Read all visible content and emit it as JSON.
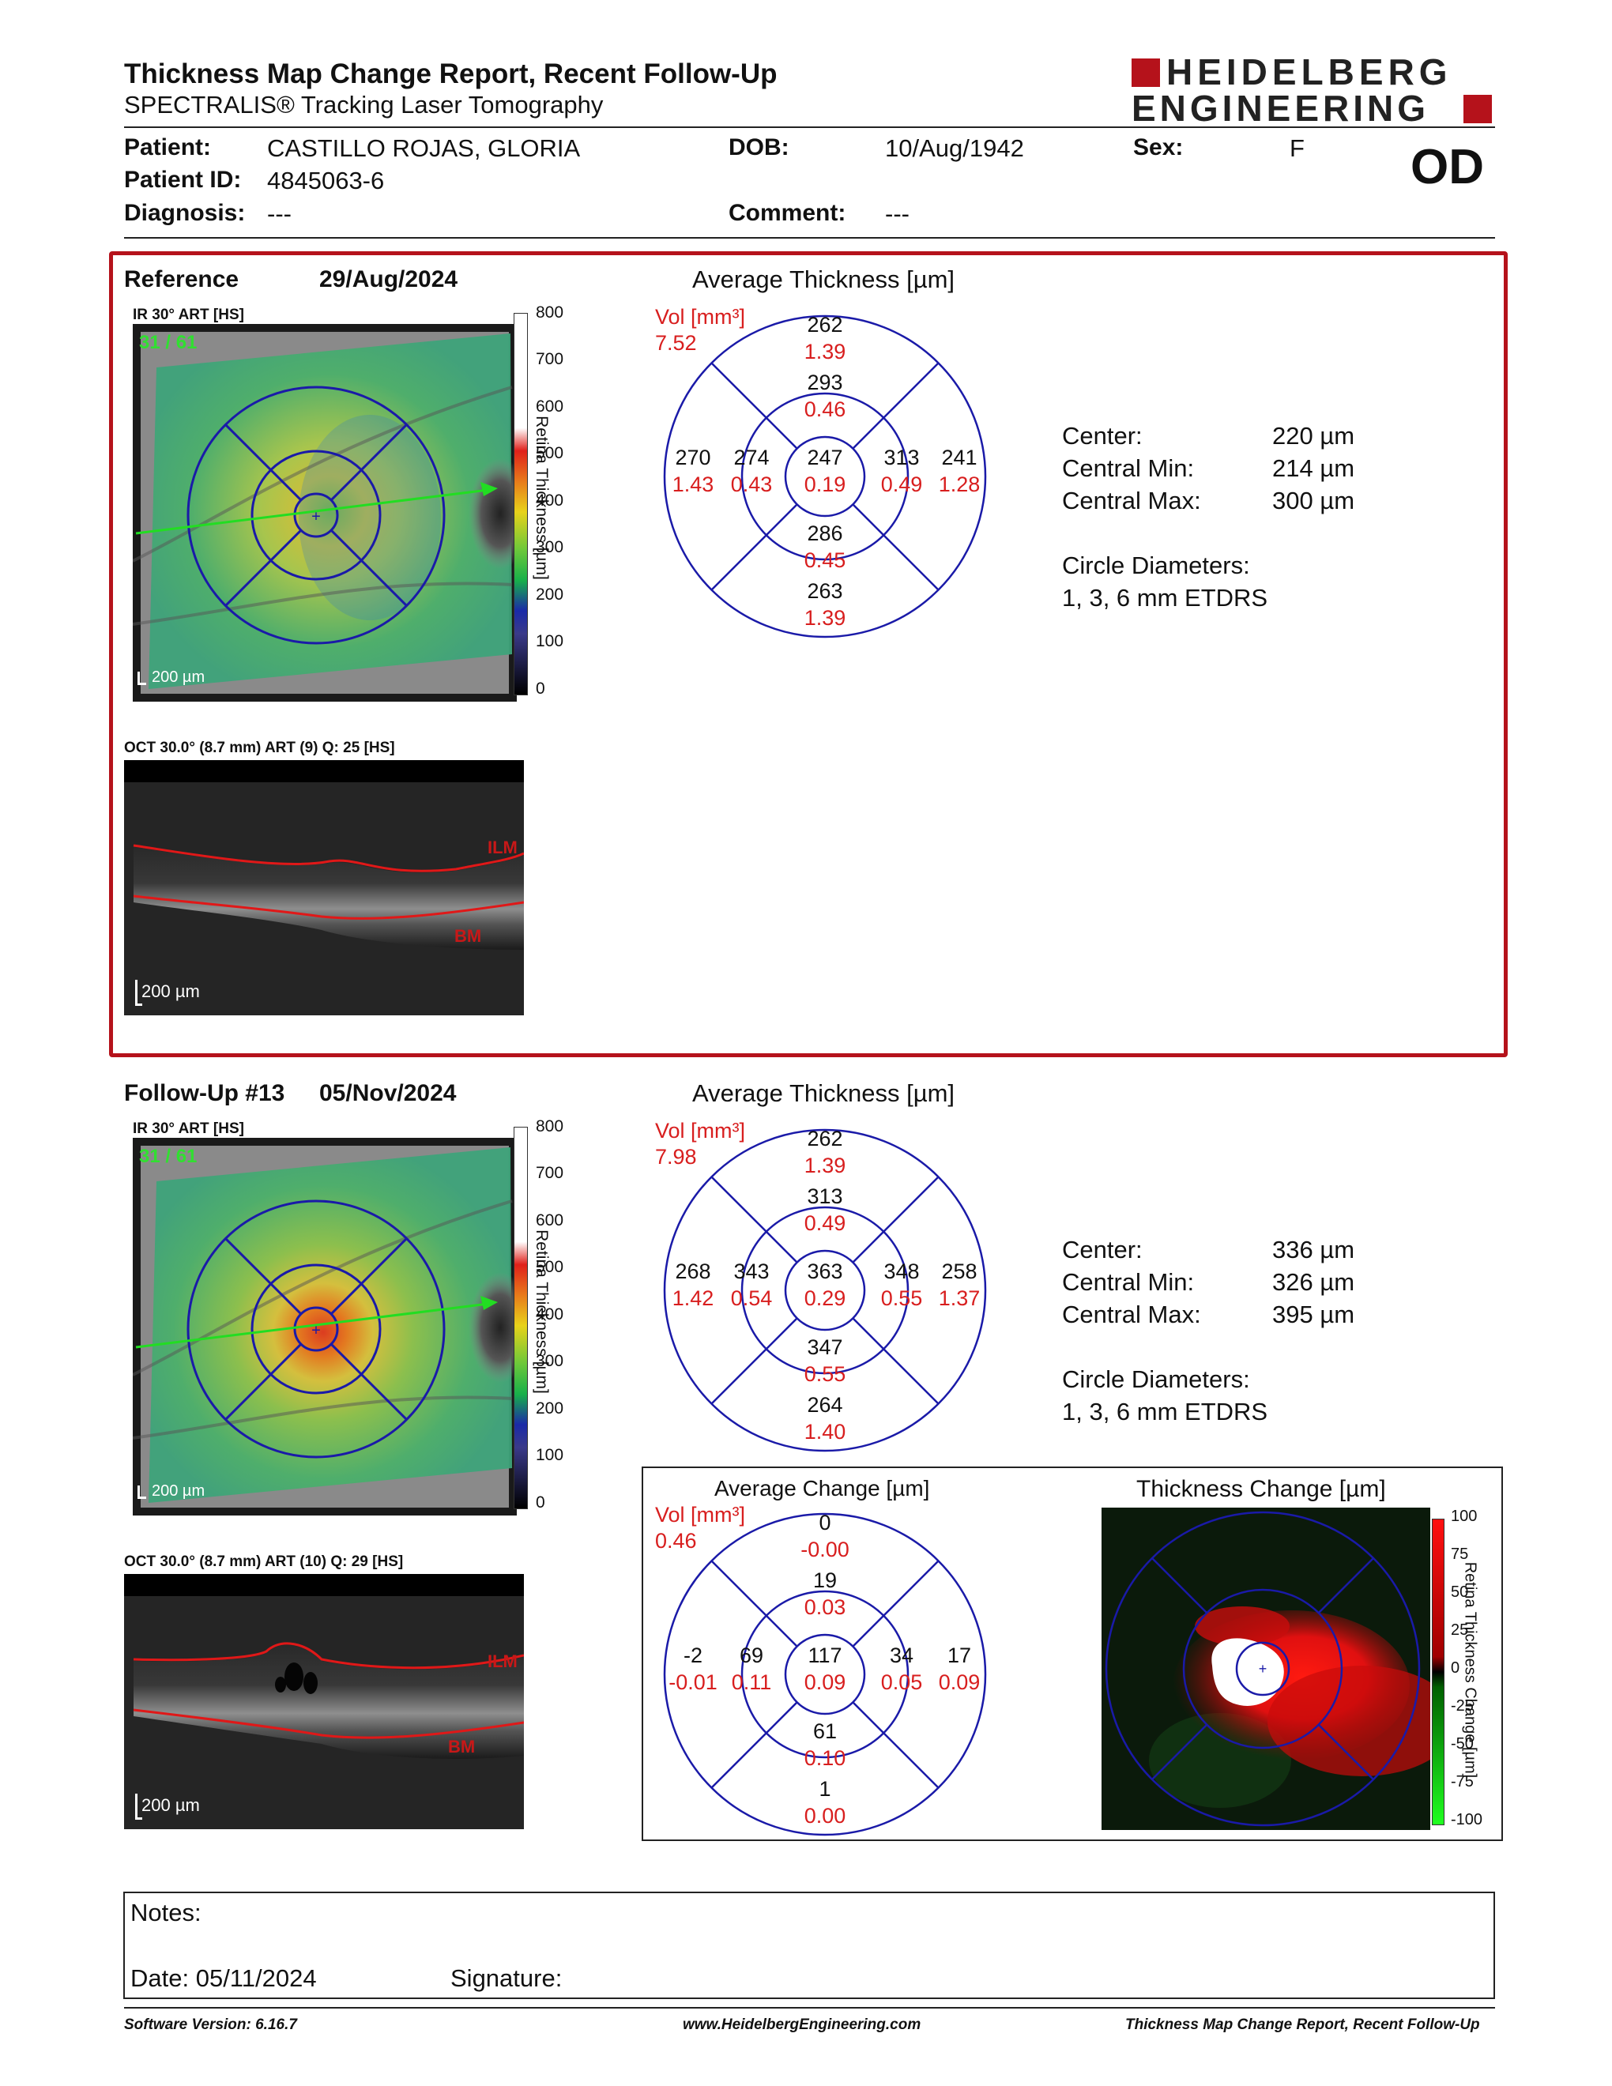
{
  "header": {
    "title": "Thickness Map Change Report, Recent Follow-Up",
    "subtitle": "SPECTRALIS® Tracking Laser Tomography",
    "logo_line1": "HEIDELBERG",
    "logo_line2": "ENGINEERING",
    "eye": "OD"
  },
  "patient": {
    "patient_label": "Patient:",
    "patient_value": "CASTILLO ROJAS, GLORIA",
    "id_label": "Patient ID:",
    "id_value": "4845063-6",
    "diag_label": "Diagnosis:",
    "diag_value": "---",
    "dob_label": "DOB:",
    "dob_value": "10/Aug/1942",
    "comment_label": "Comment:",
    "comment_value": "---",
    "sex_label": "Sex:",
    "sex_value": "F"
  },
  "reference": {
    "label": "Reference",
    "date": "29/Aug/2024",
    "ir_label": "IR 30° ART [HS]",
    "frame": "31 / 61",
    "scale": "200 µm",
    "oct_label": "OCT 30.0° (8.7 mm) ART (9) Q: 25 [HS]",
    "oct_scale": "200 µm",
    "ilm": "ILM",
    "bm": "BM",
    "grid_title": "Average Thickness [µm]",
    "vol_label": "Vol [mm³]",
    "vol_value": "7.52",
    "sectors": {
      "outer_sup": [
        "262",
        "1.39"
      ],
      "inner_sup": [
        "293",
        "0.46"
      ],
      "outer_temp": [
        "270",
        "1.43"
      ],
      "inner_temp": [
        "274",
        "0.43"
      ],
      "center": [
        "247",
        "0.19"
      ],
      "inner_nasal": [
        "313",
        "0.49"
      ],
      "outer_nasal": [
        "241",
        "1.28"
      ],
      "inner_inf": [
        "286",
        "0.45"
      ],
      "outer_inf": [
        "263",
        "1.39"
      ]
    },
    "stats": {
      "center_label": "Center:",
      "center_value": "220 µm",
      "min_label": "Central Min:",
      "min_value": "214 µm",
      "max_label": "Central Max:",
      "max_value": "300 µm",
      "circle_label": "Circle Diameters:",
      "circle_value": "1, 3, 6 mm ETDRS"
    }
  },
  "followup": {
    "label": "Follow-Up #13",
    "date": "05/Nov/2024",
    "ir_label": "IR 30° ART [HS]",
    "frame": "31 / 61",
    "scale": "200 µm",
    "oct_label": "OCT 30.0° (8.7 mm) ART (10) Q: 29 [HS]",
    "oct_scale": "200 µm",
    "ilm": "ILM",
    "bm": "BM",
    "grid_title": "Average Thickness [µm]",
    "vol_label": "Vol [mm³]",
    "vol_value": "7.98",
    "sectors": {
      "outer_sup": [
        "262",
        "1.39"
      ],
      "inner_sup": [
        "313",
        "0.49"
      ],
      "outer_temp": [
        "268",
        "1.42"
      ],
      "inner_temp": [
        "343",
        "0.54"
      ],
      "center": [
        "363",
        "0.29"
      ],
      "inner_nasal": [
        "348",
        "0.55"
      ],
      "outer_nasal": [
        "258",
        "1.37"
      ],
      "inner_inf": [
        "347",
        "0.55"
      ],
      "outer_inf": [
        "264",
        "1.40"
      ]
    },
    "stats": {
      "center_label": "Center:",
      "center_value": "336 µm",
      "min_label": "Central Min:",
      "min_value": "326 µm",
      "max_label": "Central Max:",
      "max_value": "395 µm",
      "circle_label": "Circle Diameters:",
      "circle_value": "1, 3, 6 mm ETDRS"
    }
  },
  "change": {
    "grid_title": "Average Change [µm]",
    "vol_label": "Vol [mm³]",
    "vol_value": "0.46",
    "sectors": {
      "outer_sup": [
        "0",
        "-0.00"
      ],
      "inner_sup": [
        "19",
        "0.03"
      ],
      "outer_temp": [
        "-2",
        "-0.01"
      ],
      "inner_temp": [
        "69",
        "0.11"
      ],
      "center": [
        "117",
        "0.09"
      ],
      "inner_nasal": [
        "34",
        "0.05"
      ],
      "outer_nasal": [
        "17",
        "0.09"
      ],
      "inner_inf": [
        "61",
        "0.10"
      ],
      "outer_inf": [
        "1",
        "0.00"
      ]
    },
    "map_title": "Thickness Change [µm]",
    "colorbar_label": "Retina Thickness Change [µm]",
    "colorbar_ticks": [
      "100",
      "75",
      "50",
      "25",
      "0",
      "-25",
      "-50",
      "-75",
      "-100"
    ]
  },
  "thickness_colorbar": {
    "label": "Retina Thickness [µm]",
    "ticks": [
      "800",
      "700",
      "600",
      "500",
      "400",
      "300",
      "200",
      "100",
      "0"
    ]
  },
  "notes": {
    "notes_label": "Notes:",
    "date_label": "Date: 05/11/2024",
    "signature_label": "Signature:"
  },
  "footer": {
    "software": "Software Version: 6.16.7",
    "website": "www.HeidelbergEngineering.com",
    "report": "Thickness Map Change Report, Recent Follow-Up"
  },
  "colors": {
    "accent_red": "#b5121b",
    "grid_blue": "#1a1aa8",
    "value_red": "#d81e1e"
  }
}
